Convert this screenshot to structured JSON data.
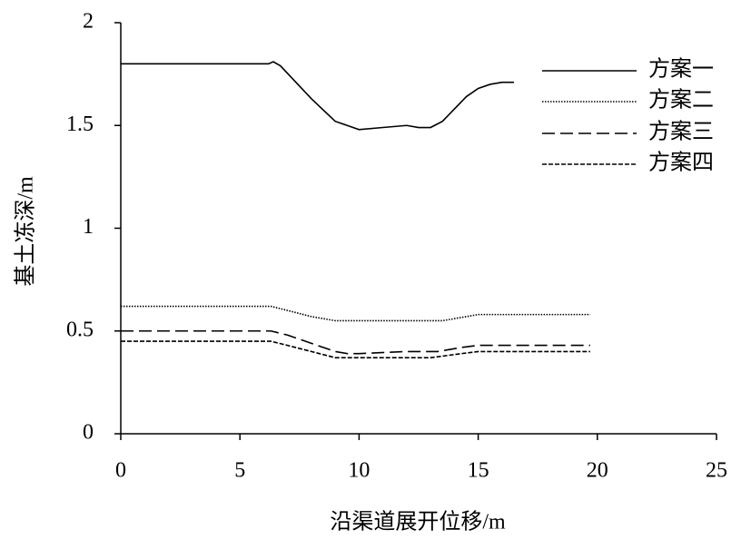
{
  "chart_data": {
    "type": "line",
    "x_label": "沿渠道展开位移/m",
    "y_label": "基土冻深/m",
    "xlim": [
      0,
      25
    ],
    "xticks": [
      0,
      5,
      10,
      15,
      20,
      25
    ],
    "ylim": [
      0,
      2
    ],
    "yticks": [
      0,
      0.5,
      1,
      1.5,
      2
    ],
    "legend": "upper right",
    "series": [
      {
        "name": "方案一",
        "color": "#000000",
        "linestyle": "solid",
        "x": [
          0,
          6.2,
          6.4,
          6.7,
          8,
          9,
          10,
          11,
          12,
          12.5,
          13,
          13.5,
          14.5,
          15,
          15.5,
          16,
          16.5
        ],
        "values": [
          1.8,
          1.8,
          1.81,
          1.79,
          1.63,
          1.52,
          1.48,
          1.49,
          1.5,
          1.49,
          1.49,
          1.52,
          1.64,
          1.68,
          1.7,
          1.71,
          1.71
        ]
      },
      {
        "name": "方案二",
        "color": "#000000",
        "linestyle": "dotted",
        "x": [
          0,
          6.3,
          7,
          8,
          9,
          9.5,
          10,
          12,
          13.5,
          14.5,
          15,
          16,
          19.7
        ],
        "values": [
          0.62,
          0.62,
          0.6,
          0.57,
          0.55,
          0.55,
          0.55,
          0.55,
          0.55,
          0.57,
          0.58,
          0.58,
          0.58
        ]
      },
      {
        "name": "方案三",
        "color": "#000000",
        "linestyle": "dashed",
        "x": [
          0,
          6.3,
          7,
          8,
          9,
          9.5,
          10,
          12,
          13.3,
          14.3,
          15,
          16,
          19.7
        ],
        "values": [
          0.5,
          0.5,
          0.48,
          0.44,
          0.4,
          0.39,
          0.39,
          0.4,
          0.4,
          0.42,
          0.43,
          0.43,
          0.43
        ]
      },
      {
        "name": "方案四",
        "color": "#000000",
        "linestyle": "short-dashed",
        "x": [
          0,
          6.3,
          7,
          8,
          9,
          9.5,
          10,
          12,
          13,
          14.3,
          15,
          16,
          19.7
        ],
        "values": [
          0.45,
          0.45,
          0.43,
          0.4,
          0.37,
          0.37,
          0.37,
          0.37,
          0.37,
          0.39,
          0.4,
          0.4,
          0.4
        ]
      }
    ]
  }
}
